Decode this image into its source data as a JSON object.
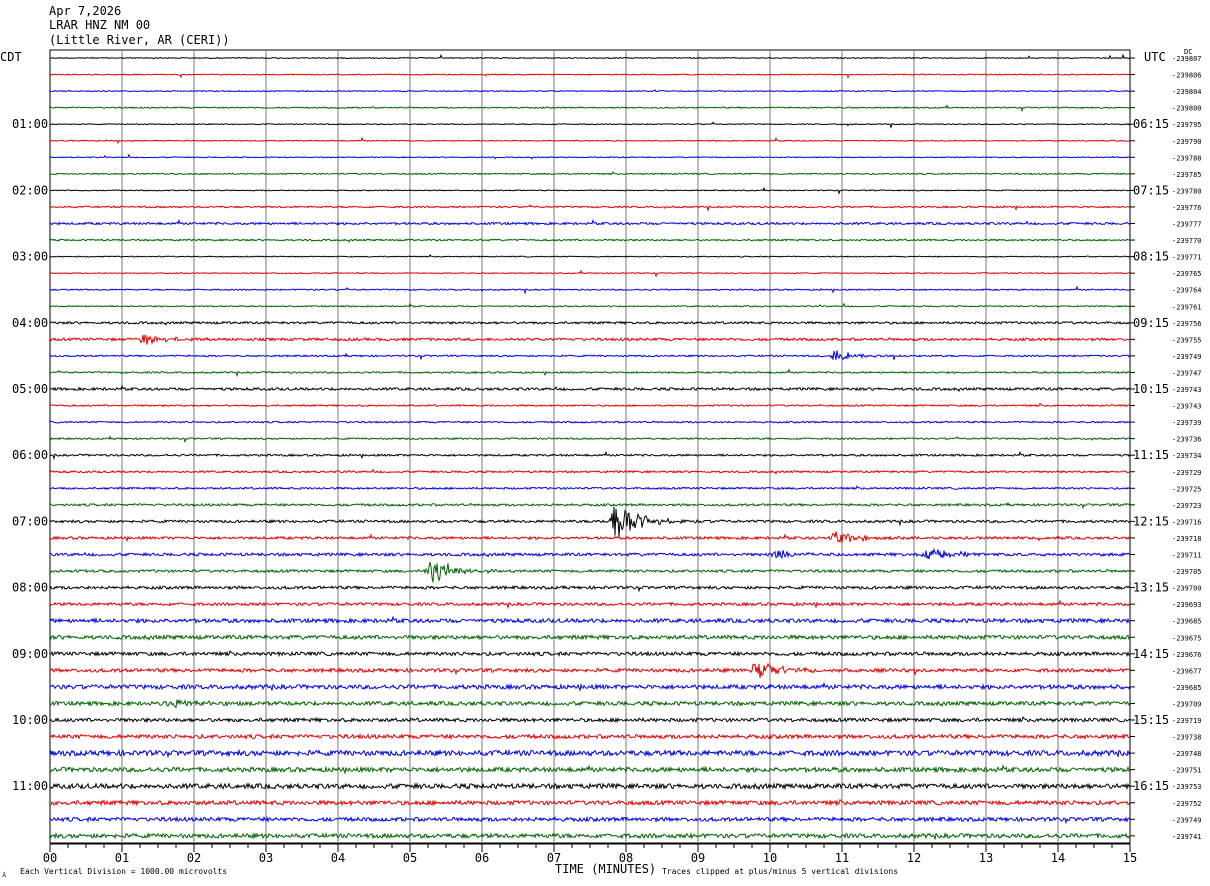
{
  "header": {
    "date": "Apr 7,2026",
    "station": "LRAR HNZ NM 00",
    "location": "(Little River, AR (CERI))"
  },
  "left_tz": "CDT",
  "right_tz": "UTC",
  "dc_label": "DC",
  "footer": {
    "scale_note": "Each Vertical Division = 1000.00 microvolts",
    "clip_note": "Traces clipped at plus/minus 5 vertical divisions",
    "scale_mark": "⅄"
  },
  "colors": {
    "trace_cycle": [
      "#000000",
      "#e00000",
      "#0000e0",
      "#006400"
    ],
    "grid": "#7a7a7a"
  },
  "chart_data": {
    "type": "line",
    "title": "",
    "xlabel": "TIME (MINUTES)",
    "ylabel": "",
    "xlim": [
      0,
      15
    ],
    "x_ticks": [
      "00",
      "01",
      "02",
      "03",
      "04",
      "05",
      "06",
      "07",
      "08",
      "09",
      "10",
      "11",
      "12",
      "13",
      "14",
      "15"
    ],
    "left_hour_labels": [
      "01:00",
      "02:00",
      "03:00",
      "04:00",
      "05:00",
      "06:00",
      "07:00",
      "08:00",
      "09:00",
      "10:00",
      "11:00"
    ],
    "right_hour_labels": [
      "06:15",
      "07:15",
      "08:15",
      "09:15",
      "10:15",
      "11:15",
      "12:15",
      "13:15",
      "14:15",
      "15:15",
      "16:15"
    ],
    "trace_values": [
      "-239807",
      "-239806",
      "-239804",
      "-239800",
      "-239795",
      "-239790",
      "-239788",
      "-239785",
      "-239780",
      "-239776",
      "-239777",
      "-239770",
      "-239771",
      "-239765",
      "-239764",
      "-239761",
      "-239756",
      "-239755",
      "-239749",
      "-239747",
      "-239743",
      "-239743",
      "-239739",
      "-239736",
      "-239734",
      "-239729",
      "-239725",
      "-239723",
      "-239716",
      "-239718",
      "-239711",
      "-239705",
      "-239700",
      "-239693",
      "-239685",
      "-239675",
      "-239676",
      "-239677",
      "-239685",
      "-239709",
      "-239719",
      "-239738",
      "-239748",
      "-239751",
      "-239753",
      "-239752",
      "-239749",
      "-239741"
    ],
    "trace_noise": [
      0.3,
      0.3,
      0.3,
      0.4,
      0.3,
      0.3,
      0.3,
      0.4,
      0.3,
      0.5,
      0.7,
      0.5,
      0.3,
      0.3,
      0.4,
      0.4,
      0.7,
      0.8,
      0.5,
      0.5,
      0.8,
      0.5,
      0.5,
      0.5,
      0.6,
      0.6,
      0.6,
      0.7,
      0.8,
      0.8,
      0.9,
      0.8,
      0.9,
      0.9,
      1.2,
      1.2,
      1.1,
      1.1,
      1.3,
      1.2,
      1.1,
      1.2,
      1.6,
      1.4,
      1.5,
      1.3,
      1.2,
      1.3
    ],
    "events": [
      {
        "trace": 17,
        "minute": 1.3,
        "amp": 5
      },
      {
        "trace": 18,
        "minute": 10.9,
        "amp": 6
      },
      {
        "trace": 28,
        "minute": 7.85,
        "amp": 22
      },
      {
        "trace": 29,
        "minute": 10.9,
        "amp": 7
      },
      {
        "trace": 30,
        "minute": 10.1,
        "amp": 5
      },
      {
        "trace": 30,
        "minute": 12.2,
        "amp": 8
      },
      {
        "trace": 31,
        "minute": 5.3,
        "amp": 12
      },
      {
        "trace": 37,
        "minute": 9.8,
        "amp": 9
      },
      {
        "trace": 39,
        "minute": 1.7,
        "amp": 5
      }
    ]
  }
}
